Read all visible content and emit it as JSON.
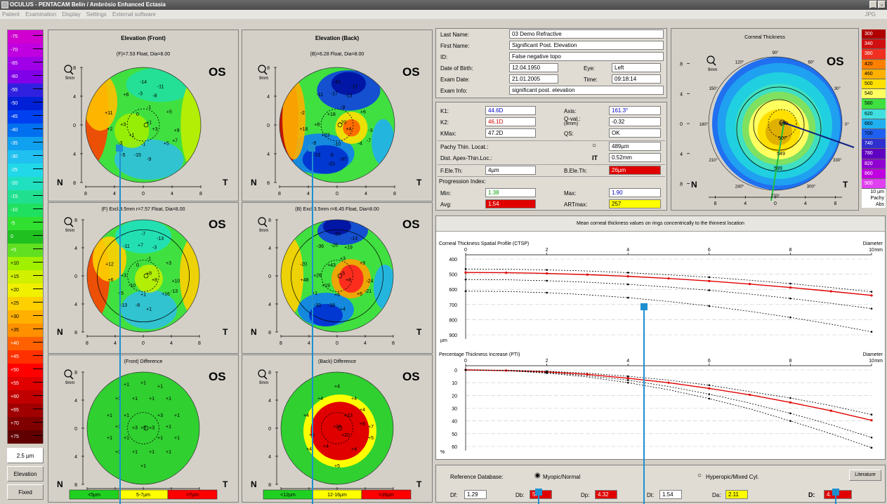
{
  "window": {
    "title": "OCULUS - PENTACAM  Belin / Ambrósio Enhanced Ectasia",
    "jpg": "JPG"
  },
  "menu": [
    "Patient",
    "Examination",
    "Display",
    "Settings",
    "External software"
  ],
  "scale": {
    "values": [
      "-75",
      "-70",
      "-65",
      "-60",
      "-55",
      "-50",
      "-45",
      "-40",
      "-35",
      "-30",
      "-25",
      "-20",
      "-15",
      "-10",
      "-5",
      "0",
      "+5",
      "+10",
      "+15",
      "+20",
      "+25",
      "+30",
      "+35",
      "+40",
      "+45",
      "+50",
      "+55",
      "+60",
      "+65",
      "+70",
      "+75"
    ],
    "colors": [
      "#d000d0",
      "#c000e0",
      "#a000e8",
      "#8000e8",
      "#3020e0",
      "#0020d8",
      "#0040f0",
      "#0070f0",
      "#10a0f0",
      "#20c0f0",
      "#20d8e8",
      "#20e0c0",
      "#20e090",
      "#20e060",
      "#30e030",
      "#20c020",
      "#60e020",
      "#a0f000",
      "#d0f000",
      "#f0f000",
      "#ffd000",
      "#ffb000",
      "#ff9000",
      "#ff6000",
      "#ff3000",
      "#ff0000",
      "#e00000",
      "#c00000",
      "#a00000",
      "#800000",
      "#600000"
    ],
    "step_label": "2.5 µm",
    "mode_label": "Elevation",
    "fixed_label": "Fixed"
  },
  "maps": {
    "front_title": "Elevation (Front)",
    "back_title": "Elevation (Back)",
    "front_top_sub": "(F)=7.53 Float, Dia=8.00",
    "back_top_sub": "(B)=6.28 Float, Dia=8.00",
    "front_mid_sub": "(F) Excl.3.5mm  r=7.57 Float, Dia=8.00",
    "back_mid_sub": "(B) Excl.3.5mm  r=6.45 Float, Dia=8.00",
    "front_diff_title": "(Front) Difference",
    "back_diff_title": "(Back) Difference",
    "eye_label": "OS",
    "nasal": "N",
    "temporal": "T",
    "zoom_label": "9mm",
    "axis_ticks": [
      "8",
      "4",
      "0",
      "4",
      "8"
    ],
    "front_legend": [
      "<5µm",
      "5-7µm",
      ">7µm"
    ],
    "back_legend": [
      "<12µm",
      "12-16µm",
      ">16µm"
    ],
    "front_top_values": [
      "-14",
      "-11",
      "+6",
      "-3",
      "-8",
      "-1",
      "+11",
      "0",
      "+5",
      "+1",
      "+2",
      "+3",
      "+3",
      "+9",
      "+1",
      "-3",
      "+5",
      "+7",
      "-1",
      "-5",
      "-15",
      "-9"
    ],
    "back_top_values": [
      "-41",
      "-17",
      "-11",
      "-17",
      "-13",
      "-9",
      "-2",
      "+18",
      "+6",
      "-20",
      "+18",
      "+8",
      "+4",
      "-3",
      "+23",
      "-9",
      "-4",
      "-7",
      "-10",
      "-23",
      "-5",
      "-37",
      "-23"
    ],
    "front_mid_values": [
      "-7",
      "-13",
      "-11",
      "+7",
      "-3",
      "-1",
      "+12",
      "0",
      "+3",
      "+8",
      "+6",
      "+3",
      "+8",
      "+10",
      "-10",
      "+5",
      "+16",
      "-13",
      "+1",
      "-13",
      "-8",
      "+1"
    ],
    "back_mid_values": [
      "-26",
      "-13",
      "-36",
      "-26",
      "+19",
      "+3",
      "-20",
      "+43",
      "+9",
      "-5",
      "+48",
      "+26",
      "+8",
      "-24",
      "+19",
      "+1",
      "+5",
      "-21",
      "+6",
      "-33",
      "-18",
      "+4"
    ],
    "front_diff_values": [
      "+1",
      "+1",
      "+1",
      "+1",
      "+1",
      "+1",
      "+1",
      "+1",
      "+1",
      "+3",
      "+1",
      "+1",
      "+3",
      "+5",
      "+3",
      "+1",
      "+1",
      "+1",
      "+1",
      "+1",
      "+3",
      "+1",
      "+1",
      "+1",
      "+1"
    ],
    "back_diff_values": [
      "+4",
      "+4",
      "+4",
      "+4",
      "+13",
      "+4",
      "+6",
      "+28",
      "+7",
      "+4",
      "+20",
      "+5",
      "+4",
      "+4",
      "+4",
      "+5"
    ],
    "thickness_title": "Corneal Thickness",
    "thickness_values": [
      "489",
      "507",
      "549",
      "599"
    ],
    "angle_labels": [
      "90°",
      "60°",
      "30°",
      "0°",
      "330°",
      "300°",
      "270°",
      "240°",
      "210°",
      "180°",
      "150°",
      "120°"
    ]
  },
  "patient": {
    "last_name_label": "Last Name:",
    "last_name": "03 Demo Refractive",
    "first_name_label": "First Name:",
    "first_name": "Significant Post. Elevation",
    "id_label": "ID:",
    "id": "False negative topo",
    "dob_label": "Date of Birth:",
    "dob": "12.04.1950",
    "eye_label": "Eye:",
    "eye": "Left",
    "exam_date_label": "Exam Date:",
    "exam_date": "21.01.2005",
    "time_label": "Time:",
    "time": "09:18:14",
    "exam_info_label": "Exam Info:",
    "exam_info": "significant post. elevation"
  },
  "metrics": {
    "k1_label": "K1:",
    "k1": "44.6D",
    "k2_label": "K2:",
    "k2": "46.1D",
    "kmax_label": "KMax:",
    "kmax": "47.2D",
    "axis_label": "Axis:",
    "axis": "161.3°",
    "qval_label": "Q-val.:",
    "qval_sub": "(8mm)",
    "qval": "-0.32",
    "qs_label": "QS:",
    "qs": "OK",
    "pachy_label": "Pachy Thin. Locat.:",
    "pachy": "489µm",
    "dist_label": "Dist. Apex-Thin.Loc.:",
    "dist": "0.52mm",
    "it_label": "IT",
    "fele_label": "F.Ele.Th:",
    "fele": "4µm",
    "bele_label": "B.Ele.Th:",
    "bele": "26µm",
    "prog_label": "Progression Index:",
    "min_label": "Min:",
    "min": "1.38",
    "max_label": "Max:",
    "max": "1.90",
    "avg_label": "Avg:",
    "avg": "1.54",
    "art_label": "ARTmax:",
    "art": "257"
  },
  "thickness_scale": {
    "values": [
      "300",
      "340",
      "380",
      "420",
      "460",
      "500",
      "540",
      "580",
      "620",
      "660",
      "700",
      "740",
      "780",
      "820",
      "860",
      "900"
    ],
    "colors": [
      "#b00000",
      "#d01010",
      "#f03020",
      "#ff8000",
      "#ffb000",
      "#ffe000",
      "#ffff60",
      "#40e040",
      "#40e0e0",
      "#20b0f0",
      "#2060f0",
      "#3030d0",
      "#6000c0",
      "#9000d0",
      "#c000e0",
      "#e040f0"
    ],
    "unit": "10 µm",
    "mode1": "Pachy",
    "mode2": "Abs"
  },
  "ctsp": {
    "header": "Mean corneal thickness values on rings concentrically to the thinnest location",
    "title1": "Corneal Thickness Spatial Profile (CTSP)",
    "title2": "Percentage Thickness Increase (PTI)",
    "diameter_label": "Diameter",
    "mm": "mm",
    "um": "µm",
    "pct": "%",
    "x_ticks": [
      "0",
      "2",
      "4",
      "6",
      "8",
      "10"
    ],
    "y1_ticks": [
      "400",
      "500",
      "600",
      "700",
      "800",
      "900"
    ],
    "y2_ticks": [
      "0",
      "10",
      "20",
      "30",
      "40",
      "50",
      "60"
    ]
  },
  "chart_data": [
    {
      "type": "line",
      "title": "Corneal Thickness Spatial Profile (CTSP)",
      "xlabel": "Diameter mm",
      "ylabel": "µm",
      "xlim": [
        0,
        10
      ],
      "ylim": [
        400,
        950
      ],
      "x": [
        0,
        1,
        2,
        3,
        4,
        5,
        6,
        7,
        8,
        9,
        10
      ],
      "series": [
        {
          "values": [
            489,
            490,
            495,
            503,
            514,
            528,
            545,
            565,
            588,
            613,
            640
          ]
        },
        {
          "values": [
            466,
            467,
            472,
            479,
            490,
            504,
            520,
            540,
            562,
            588,
            616
          ]
        },
        {
          "values": [
            535,
            537,
            543,
            553,
            567,
            585,
            606,
            631,
            660,
            692,
            727
          ]
        },
        {
          "values": [
            612,
            614,
            622,
            636,
            655,
            680,
            710,
            745,
            785,
            830,
            880
          ]
        }
      ]
    },
    {
      "type": "line",
      "title": "Percentage Thickness Increase (PTI)",
      "xlabel": "Diameter mm",
      "ylabel": "%",
      "xlim": [
        0,
        10
      ],
      "ylim": [
        0,
        65
      ],
      "x": [
        0,
        1,
        2,
        3,
        4,
        5,
        6,
        7,
        8,
        9,
        10
      ],
      "series": [
        {
          "values": [
            0,
            0.5,
            1.5,
            3.5,
            6.5,
            10,
            14.5,
            19.5,
            25.5,
            32,
            39.5
          ]
        },
        {
          "values": [
            0,
            0.5,
            2,
            4.5,
            8,
            13,
            19,
            26,
            34,
            43,
            53
          ]
        },
        {
          "values": [
            0,
            0.5,
            2.5,
            5.5,
            10,
            15.5,
            22.5,
            30.5,
            40,
            50,
            61
          ]
        },
        {
          "values": [
            0,
            0.3,
            1,
            2.5,
            5,
            8,
            12,
            17,
            22,
            28,
            35
          ]
        }
      ]
    }
  ],
  "reference": {
    "label": "Reference Database:",
    "opt1": "Myopic/Normal",
    "opt2": "Hyperopic/Mixed Cyl.",
    "literature": "Literature",
    "df_label": "Df:",
    "df": "1.29",
    "db_label": "Db:",
    "db": "5.",
    "dp_label": "Dp:",
    "dp": "4.32",
    "dt_label": "Dt:",
    "dt": "1.54",
    "da_label": "Da:",
    "da": "2.11",
    "d_label": "D:",
    "d": "4."
  }
}
